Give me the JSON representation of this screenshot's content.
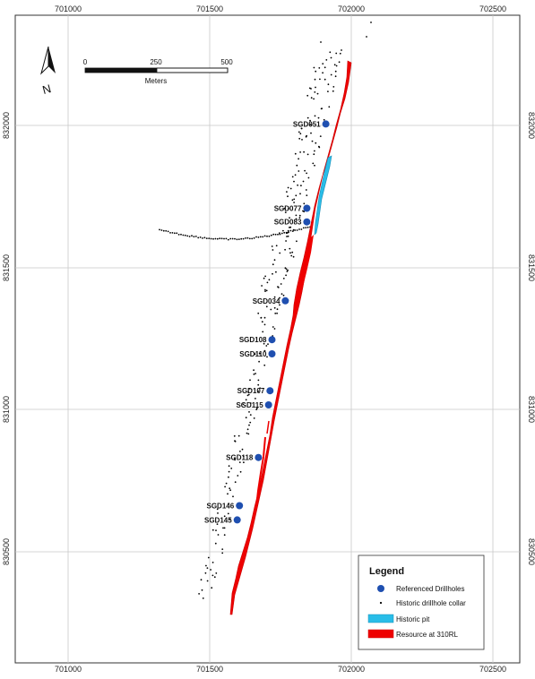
{
  "x_ticks": [
    "701000",
    "701500",
    "702000",
    "702500"
  ],
  "y_ticks": [
    "832000",
    "831500",
    "831000",
    "830500"
  ],
  "scale_bar": {
    "labels": [
      "0",
      "250",
      "500"
    ],
    "unit": "Meters"
  },
  "north_arrow": {
    "label": "N"
  },
  "drillholes": [
    {
      "id": "SGD051",
      "x": 701910,
      "y": 832005
    },
    {
      "id": "SGD077",
      "x": 701843,
      "y": 831708
    },
    {
      "id": "SGD083",
      "x": 701843,
      "y": 831660
    },
    {
      "id": "SGD034",
      "x": 701767,
      "y": 831382
    },
    {
      "id": "SGD108",
      "x": 701720,
      "y": 831245
    },
    {
      "id": "SGD110",
      "x": 701720,
      "y": 831195
    },
    {
      "id": "SGD107",
      "x": 701713,
      "y": 831065
    },
    {
      "id": "SGD115",
      "x": 701708,
      "y": 831015
    },
    {
      "id": "SGD118",
      "x": 701672,
      "y": 830830
    },
    {
      "id": "SGD146",
      "x": 701605,
      "y": 830660
    },
    {
      "id": "SGD145",
      "x": 701597,
      "y": 830610
    }
  ],
  "legend": {
    "title": "Legend",
    "items": [
      {
        "label": "Referenced Drillholes",
        "icon": "blue-circle-icon"
      },
      {
        "label": "Historic drillhole collar",
        "icon": "black-dot-icon"
      },
      {
        "label": "Historic pit",
        "icon": "cyan-patch-icon"
      },
      {
        "label": "Resource at 310RL",
        "icon": "red-patch-icon"
      }
    ]
  },
  "colors": {
    "drillhole": "#1f4fb0",
    "collar": "#000000",
    "pit": "#29bde8",
    "resource": "#ee0000",
    "grid": "#c8c8c8",
    "frame": "#333333"
  }
}
